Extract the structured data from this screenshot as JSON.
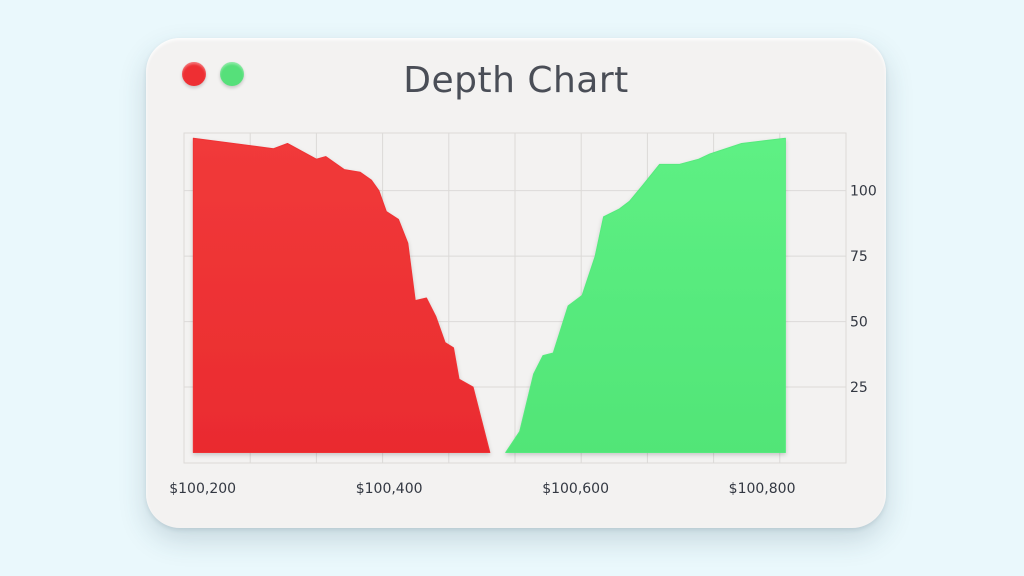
{
  "window": {
    "title": "Depth Chart",
    "controls": [
      {
        "name": "close",
        "color": "#ee2f33"
      },
      {
        "name": "maximize",
        "color": "#56e07a"
      }
    ]
  },
  "chart_data": {
    "type": "area",
    "title": "Depth Chart",
    "xlabel": "",
    "ylabel": "",
    "xlim": [
      100180,
      100890
    ],
    "ylim": [
      -4,
      122
    ],
    "x_ticks": [
      100200,
      100400,
      100600,
      100800
    ],
    "x_tick_labels": [
      "$100,200",
      "$100,400",
      "$100,600",
      "$100,800"
    ],
    "y_ticks": [
      25,
      50,
      75,
      100
    ],
    "y_tick_labels": [
      "25",
      "50",
      "75",
      "100"
    ],
    "grid": true,
    "y_axis_position": "right",
    "series": [
      {
        "side": "bid",
        "color": "#ef3234",
        "x": [
          100190,
          100276,
          100291,
          100322,
          100332,
          100352,
          100369,
          100381,
          100389,
          100397,
          100410,
          100420,
          100428,
          100440,
          100450,
          100460,
          100469,
          100475,
          100490,
          100508
        ],
        "y": [
          120,
          116,
          118,
          112,
          113,
          108,
          107,
          104,
          100,
          92,
          89,
          80,
          58,
          59,
          52,
          42,
          40,
          28,
          25,
          0
        ]
      },
      {
        "side": "ask",
        "color": "#56ea7d",
        "x": [
          100525,
          100540,
          100555,
          100565,
          100576,
          100592,
          100607,
          100621,
          100630,
          100647,
          100658,
          100672,
          100690,
          100711,
          100732,
          100744,
          100778,
          100825
        ],
        "y": [
          0,
          8,
          30,
          37,
          38,
          56,
          60,
          75,
          90,
          93,
          96,
          102,
          110,
          110,
          112,
          114,
          118,
          120
        ]
      }
    ]
  }
}
